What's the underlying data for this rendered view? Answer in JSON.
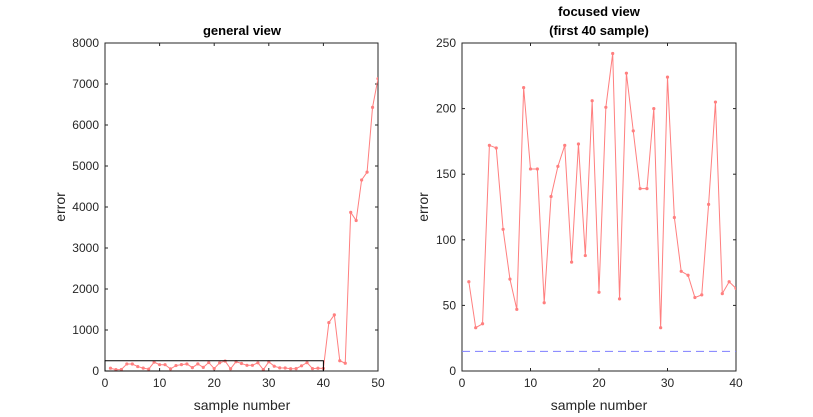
{
  "chart_data": [
    {
      "type": "line",
      "title": "general view",
      "xlabel": "sample number",
      "ylabel": "error",
      "xlim": [
        0,
        50
      ],
      "ylim": [
        0,
        8000
      ],
      "xticks": [
        "0",
        "10",
        "20",
        "30",
        "40",
        "50"
      ],
      "yticks": [
        "0",
        "1000",
        "2000",
        "3000",
        "4000",
        "5000",
        "6000",
        "7000",
        "8000"
      ],
      "grid": false,
      "series_color": "#ff7f7f",
      "highlight_box": {
        "x": [
          0,
          40
        ],
        "y": [
          0,
          250
        ],
        "color": "#000000"
      },
      "x": [
        1,
        2,
        3,
        4,
        5,
        6,
        7,
        8,
        9,
        10,
        11,
        12,
        13,
        14,
        15,
        16,
        17,
        18,
        19,
        20,
        21,
        22,
        23,
        24,
        25,
        26,
        27,
        28,
        29,
        30,
        31,
        32,
        33,
        34,
        35,
        36,
        37,
        38,
        39,
        40,
        41,
        42,
        43,
        44,
        45,
        46,
        47,
        48,
        49,
        50
      ],
      "values": [
        68,
        33,
        36,
        172,
        170,
        108,
        70,
        47,
        216,
        154,
        154,
        52,
        133,
        156,
        172,
        83,
        173,
        88,
        206,
        60,
        201,
        242,
        55,
        227,
        183,
        139,
        139,
        200,
        33,
        224,
        117,
        76,
        73,
        56,
        58,
        127,
        205,
        59,
        68,
        63,
        1180,
        1370,
        250,
        190,
        3870,
        3670,
        4660,
        4850,
        6430,
        7130
      ]
    },
    {
      "type": "line",
      "title": "focused view",
      "subtitle": "(first 40 sample)",
      "xlabel": "sample number",
      "ylabel": "error",
      "xlim": [
        0,
        40
      ],
      "ylim": [
        0,
        250
      ],
      "xticks": [
        "0",
        "10",
        "20",
        "30",
        "40"
      ],
      "yticks": [
        "0",
        "50",
        "100",
        "150",
        "200",
        "250"
      ],
      "grid": false,
      "series_color": "#ff7f7f",
      "reference_line": {
        "y": 15,
        "color": "#7f7fff",
        "style": "dashed"
      },
      "x": [
        1,
        2,
        3,
        4,
        5,
        6,
        7,
        8,
        9,
        10,
        11,
        12,
        13,
        14,
        15,
        16,
        17,
        18,
        19,
        20,
        21,
        22,
        23,
        24,
        25,
        26,
        27,
        28,
        29,
        30,
        31,
        32,
        33,
        34,
        35,
        36,
        37,
        38,
        39,
        40
      ],
      "values": [
        68,
        33,
        36,
        172,
        170,
        108,
        70,
        47,
        216,
        154,
        154,
        52,
        133,
        156,
        172,
        83,
        173,
        88,
        206,
        60,
        201,
        242,
        55,
        227,
        183,
        139,
        139,
        200,
        33,
        224,
        117,
        76,
        73,
        56,
        58,
        127,
        205,
        59,
        68,
        63
      ]
    }
  ]
}
